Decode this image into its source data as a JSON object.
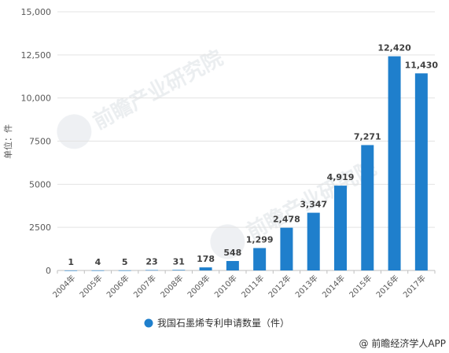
{
  "chart_data": {
    "type": "bar",
    "categories": [
      "2004年",
      "2005年",
      "2006年",
      "2007年",
      "2008年",
      "2009年",
      "2010年",
      "2011年",
      "2012年",
      "2013年",
      "2014年",
      "2015年",
      "2016年",
      "2017年"
    ],
    "series": [
      {
        "name": "我国石墨烯专利申请数量（件）",
        "values": [
          1,
          4,
          5,
          23,
          31,
          178,
          548,
          1299,
          2478,
          3347,
          4919,
          7271,
          12420,
          11430
        ],
        "color": "#1f7fcc"
      }
    ],
    "data_labels": [
      "1",
      "4",
      "5",
      "23",
      "31",
      "178",
      "548",
      "1,299",
      "2,478",
      "3,347",
      "4,919",
      "7,271",
      "12,420",
      "11,430"
    ],
    "ylabel": "单位：件",
    "ylim": [
      0,
      15000
    ],
    "yticks": [
      0,
      2500,
      5000,
      7500,
      10000,
      12500,
      15000
    ],
    "ytick_labels": [
      "0",
      "2500",
      "5000",
      "7500",
      "10,000",
      "12,500",
      "15,000"
    ],
    "grid": true,
    "legend_position": "bottom"
  },
  "watermark": {
    "brand": "前瞻产业研究院"
  },
  "source": "@ 前瞻经济学人APP"
}
